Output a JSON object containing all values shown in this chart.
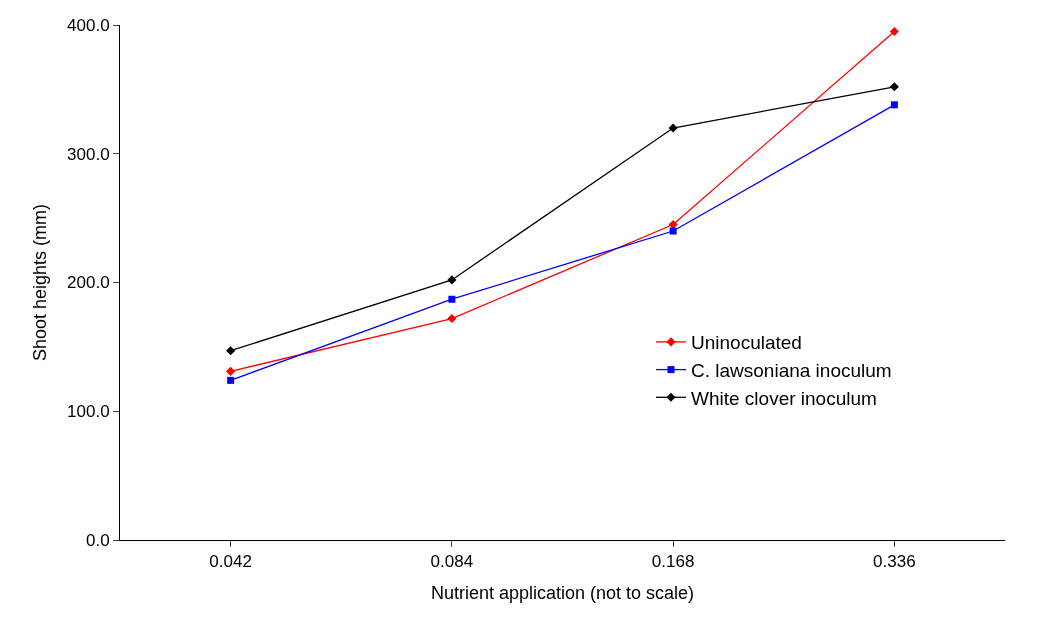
{
  "chart_data": {
    "type": "line",
    "xlabel": "Nutrient application (not to scale)",
    "ylabel": "Shoot heights (mm)",
    "categories": [
      "0.042",
      "0.084",
      "0.168",
      "0.336"
    ],
    "series": [
      {
        "name": "Uninoculated",
        "color": "#ff0000",
        "marker": "diamond",
        "values": [
          131,
          172,
          245,
          395
        ]
      },
      {
        "name": "C. lawsoniana inoculum",
        "color": "#0000ff",
        "marker": "square",
        "values": [
          124,
          187,
          240,
          338
        ]
      },
      {
        "name": "White clover inoculum",
        "color": "#000000",
        "marker": "diamond",
        "values": [
          147,
          202,
          320,
          352
        ]
      }
    ],
    "ylim": [
      0,
      400
    ],
    "yticks": [
      {
        "value": 0,
        "label": "0.0"
      },
      {
        "value": 100,
        "label": "100.0"
      },
      {
        "value": 200,
        "label": "200.0"
      },
      {
        "value": 300,
        "label": "300.0"
      },
      {
        "value": 400,
        "label": "400.0"
      }
    ],
    "grid": false,
    "legend": "right",
    "line_style": "solid"
  }
}
